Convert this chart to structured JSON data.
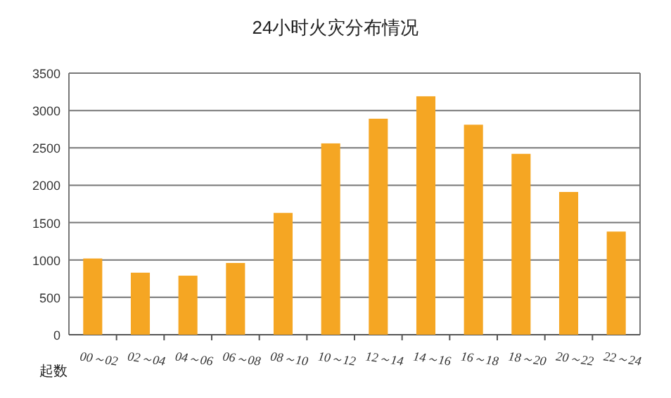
{
  "chart_data": {
    "type": "bar",
    "title": "24小时火灾分布情况",
    "ylabel": "起数",
    "categories": [
      "00～02",
      "02～04",
      "04～06",
      "06～08",
      "08～10",
      "10～12",
      "12～14",
      "14～16",
      "16～18",
      "18～20",
      "20～22",
      "22～24"
    ],
    "values": [
      1020,
      830,
      790,
      960,
      1630,
      2560,
      2890,
      3190,
      2810,
      2420,
      1910,
      1380
    ],
    "color": "#f5a623",
    "ylim": [
      0,
      3500
    ],
    "yticks": [
      0,
      500,
      1000,
      1500,
      2000,
      2500,
      3000,
      3500
    ],
    "grid": "y"
  }
}
